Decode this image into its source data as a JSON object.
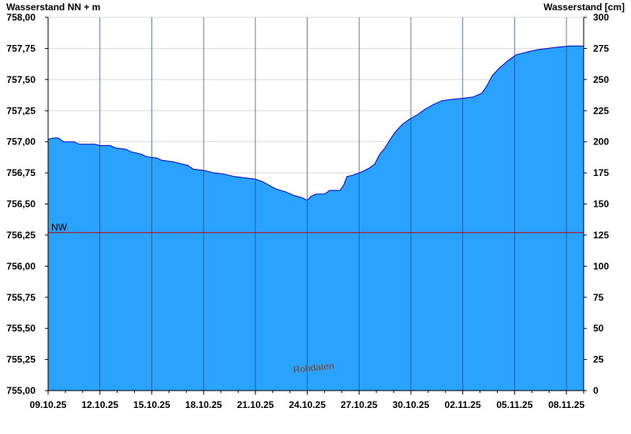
{
  "chart_data": {
    "type": "area",
    "ylabel_left": "Wasserstand NN + m",
    "ylabel_right": "Wasserstand [cm]",
    "watermark": "Rohdaten",
    "reference_line": {
      "label": "NW",
      "value": 756.27,
      "color": "#c00000"
    },
    "colors": {
      "fill": "#29a3ff",
      "line": "#0000cc",
      "grid": "#d9d9d9",
      "vgrid": "#1a3a66"
    },
    "ylim_left": [
      755.0,
      758.0
    ],
    "ylim_right": [
      0,
      300
    ],
    "left_ticks": [
      "755,00",
      "755,25",
      "755,50",
      "755,75",
      "756,00",
      "756,25",
      "756,50",
      "756,75",
      "757,00",
      "757,25",
      "757,50",
      "757,75",
      "758,00"
    ],
    "right_ticks": [
      "0",
      "25",
      "50",
      "75",
      "100",
      "125",
      "150",
      "175",
      "200",
      "225",
      "250",
      "275",
      "300"
    ],
    "x_ticks": [
      "09.10.25",
      "12.10.25",
      "15.10.25",
      "18.10.25",
      "21.10.25",
      "24.10.25",
      "27.10.25",
      "30.10.25",
      "02.11.25",
      "05.11.25",
      "08.11.25"
    ],
    "x_range_days": [
      0,
      31
    ],
    "x_unit": "days since 09.10.25",
    "series": [
      {
        "name": "Wasserstand",
        "points": [
          [
            0.0,
            757.02
          ],
          [
            0.3,
            757.03
          ],
          [
            0.6,
            757.03
          ],
          [
            0.9,
            757.0
          ],
          [
            1.5,
            757.0
          ],
          [
            1.8,
            756.98
          ],
          [
            2.7,
            756.98
          ],
          [
            3.0,
            756.97
          ],
          [
            3.6,
            756.97
          ],
          [
            3.9,
            756.95
          ],
          [
            4.5,
            756.94
          ],
          [
            4.8,
            756.92
          ],
          [
            5.4,
            756.9
          ],
          [
            5.7,
            756.88
          ],
          [
            6.3,
            756.87
          ],
          [
            6.6,
            756.85
          ],
          [
            7.2,
            756.84
          ],
          [
            7.5,
            756.83
          ],
          [
            8.1,
            756.81
          ],
          [
            8.4,
            756.78
          ],
          [
            9.0,
            756.77
          ],
          [
            9.6,
            756.75
          ],
          [
            10.2,
            756.74
          ],
          [
            10.8,
            756.72
          ],
          [
            11.4,
            756.71
          ],
          [
            12.0,
            756.7
          ],
          [
            12.4,
            756.68
          ],
          [
            12.8,
            756.65
          ],
          [
            13.2,
            756.62
          ],
          [
            13.7,
            756.6
          ],
          [
            14.2,
            756.57
          ],
          [
            14.7,
            756.55
          ],
          [
            15.0,
            756.53
          ],
          [
            15.2,
            756.56
          ],
          [
            15.5,
            756.58
          ],
          [
            15.8,
            756.58
          ],
          [
            16.0,
            756.58
          ],
          [
            16.3,
            756.61
          ],
          [
            16.9,
            756.61
          ],
          [
            17.1,
            756.65
          ],
          [
            17.3,
            756.72
          ],
          [
            17.6,
            756.73
          ],
          [
            18.2,
            756.76
          ],
          [
            18.6,
            756.79
          ],
          [
            18.9,
            756.82
          ],
          [
            19.2,
            756.9
          ],
          [
            19.5,
            756.95
          ],
          [
            19.8,
            757.02
          ],
          [
            20.1,
            757.08
          ],
          [
            20.5,
            757.14
          ],
          [
            20.9,
            757.18
          ],
          [
            21.4,
            757.22
          ],
          [
            21.8,
            757.26
          ],
          [
            22.3,
            757.3
          ],
          [
            22.8,
            757.33
          ],
          [
            23.3,
            757.34
          ],
          [
            24.0,
            757.35
          ],
          [
            24.6,
            757.36
          ],
          [
            25.1,
            757.39
          ],
          [
            25.4,
            757.45
          ],
          [
            25.7,
            757.53
          ],
          [
            26.1,
            757.59
          ],
          [
            26.6,
            757.65
          ],
          [
            27.1,
            757.7
          ],
          [
            27.7,
            757.72
          ],
          [
            28.3,
            757.74
          ],
          [
            28.9,
            757.75
          ],
          [
            29.5,
            757.76
          ],
          [
            30.2,
            757.77
          ],
          [
            31.0,
            757.77
          ]
        ]
      }
    ]
  }
}
